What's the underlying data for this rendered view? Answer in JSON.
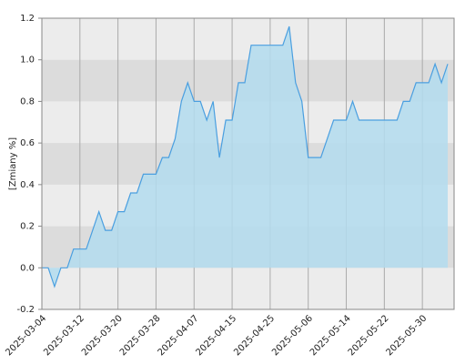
{
  "chart_data": {
    "type": "area",
    "y_label": "[Zmiany %]",
    "categories": [
      "2025-03-04",
      null,
      null,
      null,
      null,
      null,
      "2025-03-12",
      null,
      null,
      null,
      null,
      null,
      "2025-03-20",
      null,
      null,
      null,
      null,
      null,
      "2025-03-28",
      null,
      null,
      null,
      null,
      null,
      "2025-04-07",
      null,
      null,
      null,
      null,
      null,
      "2025-04-15",
      null,
      null,
      null,
      null,
      null,
      "2025-04-25",
      null,
      null,
      null,
      null,
      null,
      "2025-05-06",
      null,
      null,
      null,
      null,
      null,
      "2025-05-14",
      null,
      null,
      null,
      null,
      null,
      "2025-05-22",
      null,
      null,
      null,
      null,
      null,
      "2025-05-30",
      null,
      null,
      null,
      null
    ],
    "values": [
      0,
      0,
      -0.09,
      0,
      0,
      0.09,
      0.09,
      0.09,
      0.18,
      0.27,
      0.18,
      0.18,
      0.27,
      0.27,
      0.36,
      0.36,
      0.45,
      0.45,
      0.45,
      0.53,
      0.53,
      0.62,
      0.8,
      0.89,
      0.8,
      0.8,
      0.71,
      0.8,
      0.53,
      0.71,
      0.71,
      0.89,
      0.89,
      1.07,
      1.07,
      1.07,
      1.07,
      1.07,
      1.07,
      1.16,
      0.89,
      0.8,
      0.53,
      0.53,
      0.53,
      0.62,
      0.71,
      0.71,
      0.71,
      0.8,
      0.71,
      0.71,
      0.71,
      0.71,
      0.71,
      0.71,
      0.71,
      0.8,
      0.8,
      0.89,
      0.89,
      0.89,
      0.98,
      0.89,
      0.98
    ],
    "color": "#4a9fe0",
    "fill": "#b3dcee",
    "ylim": [
      -0.2,
      1.2
    ],
    "yticks": [
      -0.2,
      {
        "value": 0,
        "label": "0.0"
      },
      0.2,
      0.4,
      0.6,
      0.8,
      {
        "value": 1,
        "label": "1.0"
      },
      1.2
    ],
    "grid": true
  }
}
